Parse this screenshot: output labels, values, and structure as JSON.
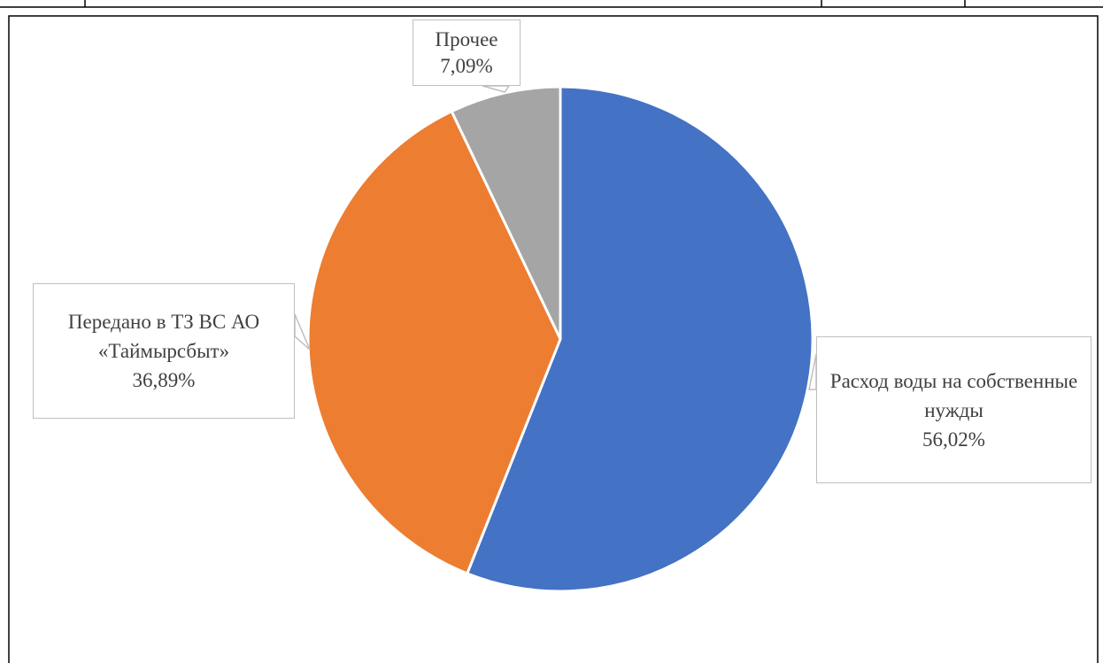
{
  "chart_data": {
    "type": "pie",
    "categories": [
      "Расход воды на собственные нужды",
      "Передано в ТЗ ВС АО «Таймырсбыт»",
      "Прочее"
    ],
    "values": [
      56.02,
      36.89,
      7.09
    ],
    "value_labels": [
      "56,02%",
      "36,89%",
      "7,09%"
    ],
    "colors": [
      "#4472c4",
      "#ed7d31",
      "#a5a5a5"
    ]
  }
}
